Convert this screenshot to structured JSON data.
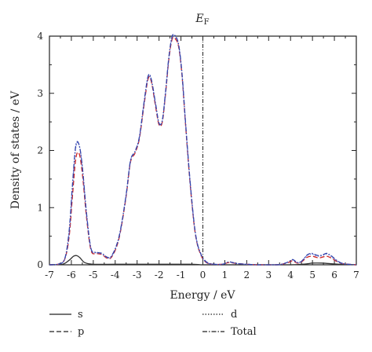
{
  "chart_data": {
    "type": "line",
    "xlabel": "Energy / eV",
    "ylabel": "Density of states / eV",
    "xlim": [
      -7,
      7
    ],
    "ylim": [
      0,
      4
    ],
    "xticks": [
      -7,
      -6,
      -5,
      -4,
      -3,
      -2,
      -1,
      0,
      1,
      2,
      3,
      4,
      5,
      6,
      7
    ],
    "yticks": [
      0,
      1,
      2,
      3,
      4
    ],
    "fermi_level_label": "E",
    "fermi_level_sub": "F",
    "fermi_level_x": 0,
    "legend_placement": "bottom",
    "series": [
      {
        "name": "s",
        "color": "#333333",
        "style": "solid",
        "x": [
          -7,
          -6.4,
          -6.1,
          -5.9,
          -5.75,
          -5.6,
          -5.4,
          -5.0,
          -4.0,
          -3.0,
          -2.0,
          -1.0,
          -0.5,
          0,
          1,
          3.8,
          4.5,
          4.8,
          5.0,
          5.4,
          5.8,
          6.2,
          7
        ],
        "y": [
          0,
          0.01,
          0.08,
          0.15,
          0.16,
          0.12,
          0.04,
          0.01,
          0.01,
          0.01,
          0.01,
          0.01,
          0.01,
          0,
          0,
          0,
          0.01,
          0.02,
          0.03,
          0.03,
          0.02,
          0.01,
          0
        ]
      },
      {
        "name": "p",
        "color": "#cc2222",
        "style": "dashed",
        "x": [
          -7,
          -6.6,
          -6.3,
          -6.1,
          -5.95,
          -5.8,
          -5.65,
          -5.5,
          -5.3,
          -5.1,
          -4.85,
          -4.6,
          -4.4,
          -4.2,
          -3.95,
          -3.75,
          -3.5,
          -3.3,
          -3.1,
          -2.9,
          -2.7,
          -2.5,
          -2.35,
          -2.15,
          -2.0,
          -1.85,
          -1.7,
          -1.55,
          -1.4,
          -1.25,
          -1.1,
          -0.95,
          -0.8,
          -0.6,
          -0.4,
          -0.25,
          -0.1,
          0,
          0.2,
          0.5,
          0.9,
          1.2,
          1.6,
          2.5,
          3.3,
          3.6,
          3.9,
          4.1,
          4.3,
          4.5,
          4.75,
          4.95,
          5.1,
          5.3,
          5.5,
          5.65,
          5.85,
          6.1,
          6.4,
          7
        ],
        "y": [
          0,
          0.01,
          0.1,
          0.5,
          1.2,
          1.85,
          1.95,
          1.6,
          0.8,
          0.25,
          0.2,
          0.18,
          0.12,
          0.12,
          0.3,
          0.6,
          1.2,
          1.8,
          1.95,
          2.2,
          2.75,
          3.25,
          3.2,
          2.75,
          2.45,
          2.5,
          3.0,
          3.6,
          3.95,
          3.95,
          3.8,
          3.3,
          2.5,
          1.5,
          0.7,
          0.35,
          0.18,
          0.1,
          0.03,
          0.01,
          0.01,
          0.04,
          0.02,
          0,
          0,
          0.01,
          0.04,
          0.07,
          0.03,
          0.05,
          0.13,
          0.15,
          0.14,
          0.12,
          0.14,
          0.15,
          0.12,
          0.06,
          0.02,
          0
        ]
      },
      {
        "name": "d",
        "color": "#5566cc",
        "style": "dotted",
        "x": [
          -7,
          -6.6,
          -6.3,
          -6.1,
          -5.95,
          -5.8,
          -5.65,
          -5.5,
          -5.3,
          -5.1,
          -4.85,
          -4.6,
          -4.4,
          -4.2,
          -3.95,
          -3.75,
          -3.5,
          -3.3,
          -3.1,
          -2.9,
          -2.7,
          -2.5,
          -2.35,
          -2.15,
          -2.0,
          -1.85,
          -1.7,
          -1.55,
          -1.4,
          -1.25,
          -1.1,
          -0.95,
          -0.8,
          -0.6,
          -0.4,
          -0.25,
          -0.1,
          0,
          0.2,
          0.5,
          0.9,
          1.2,
          1.6,
          2.5,
          3.3,
          3.6,
          3.9,
          4.1,
          4.3,
          4.5,
          4.75,
          4.95,
          5.1,
          5.3,
          5.5,
          5.65,
          5.85,
          6.1,
          6.4,
          7
        ],
        "y": [
          0,
          0.01,
          0.1,
          0.55,
          1.35,
          2.05,
          2.1,
          1.7,
          0.85,
          0.27,
          0.21,
          0.19,
          0.13,
          0.13,
          0.32,
          0.62,
          1.22,
          1.82,
          1.97,
          2.22,
          2.78,
          3.28,
          3.22,
          2.78,
          2.47,
          2.52,
          3.02,
          3.62,
          3.98,
          3.98,
          3.82,
          3.32,
          2.52,
          1.52,
          0.72,
          0.36,
          0.19,
          0.11,
          0.03,
          0.01,
          0.01,
          0.05,
          0.02,
          0,
          0,
          0.01,
          0.05,
          0.09,
          0.04,
          0.06,
          0.16,
          0.19,
          0.17,
          0.15,
          0.17,
          0.19,
          0.15,
          0.07,
          0.02,
          0
        ]
      },
      {
        "name": "Total",
        "color": "#3344aa",
        "style": "dashdot",
        "x": [
          -7,
          -6.6,
          -6.3,
          -6.1,
          -5.95,
          -5.8,
          -5.65,
          -5.5,
          -5.3,
          -5.1,
          -4.85,
          -4.6,
          -4.4,
          -4.2,
          -3.95,
          -3.75,
          -3.5,
          -3.3,
          -3.1,
          -2.9,
          -2.7,
          -2.5,
          -2.35,
          -2.15,
          -2.0,
          -1.85,
          -1.7,
          -1.55,
          -1.4,
          -1.25,
          -1.1,
          -0.95,
          -0.8,
          -0.6,
          -0.4,
          -0.25,
          -0.1,
          0,
          0.2,
          0.5,
          0.9,
          1.2,
          1.6,
          2.5,
          3.3,
          3.6,
          3.9,
          4.1,
          4.3,
          4.5,
          4.75,
          4.95,
          5.1,
          5.3,
          5.5,
          5.65,
          5.85,
          6.1,
          6.4,
          7
        ],
        "y": [
          0,
          0.01,
          0.11,
          0.6,
          1.4,
          2.08,
          2.1,
          1.72,
          0.87,
          0.28,
          0.22,
          0.2,
          0.14,
          0.14,
          0.33,
          0.63,
          1.23,
          1.83,
          1.98,
          2.23,
          2.8,
          3.3,
          3.24,
          2.8,
          2.48,
          2.53,
          3.04,
          3.64,
          4.0,
          4.0,
          3.84,
          3.34,
          2.54,
          1.54,
          0.73,
          0.37,
          0.2,
          0.12,
          0.04,
          0.01,
          0.01,
          0.05,
          0.02,
          0,
          0,
          0.01,
          0.05,
          0.09,
          0.04,
          0.06,
          0.17,
          0.2,
          0.18,
          0.16,
          0.18,
          0.2,
          0.16,
          0.08,
          0.02,
          0
        ]
      }
    ]
  }
}
